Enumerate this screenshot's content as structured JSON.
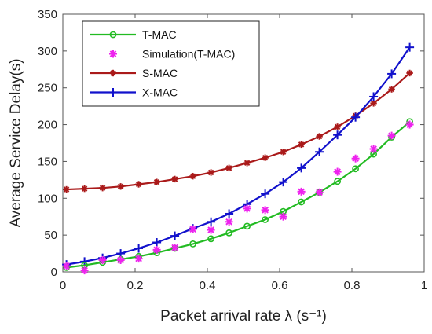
{
  "chart_data": {
    "type": "line",
    "xlabel": "Packet arrival rate λ (s⁻¹)",
    "ylabel": "Average Service Delay(s)",
    "xlim": [
      0,
      1
    ],
    "ylim": [
      0,
      350
    ],
    "xticks": [
      "0",
      "0.2",
      "0.4",
      "0.6",
      "0.8",
      "1"
    ],
    "yticks": [
      "0",
      "50",
      "100",
      "150",
      "200",
      "250",
      "300",
      "350"
    ],
    "grid": false,
    "legend_position": "top-left",
    "x": [
      0.01,
      0.06,
      0.11,
      0.16,
      0.21,
      0.26,
      0.31,
      0.36,
      0.41,
      0.46,
      0.51,
      0.56,
      0.61,
      0.66,
      0.71,
      0.76,
      0.81,
      0.86,
      0.91,
      0.96
    ],
    "series": [
      {
        "name": "T-MAC",
        "style": "line-circle",
        "color": "#22bb22",
        "values": [
          6,
          9,
          13,
          17,
          21,
          26,
          32,
          38,
          45,
          53,
          62,
          71,
          82,
          95,
          108,
          123,
          140,
          160,
          183,
          204
        ]
      },
      {
        "name": "Simulation(T-MAC)",
        "style": "marker-asterisk",
        "color": "#ee22ee",
        "values": [
          8,
          2,
          16,
          16,
          18,
          30,
          33,
          58,
          57,
          68,
          86,
          84,
          75,
          109,
          108,
          136,
          154,
          167,
          185,
          200
        ]
      },
      {
        "name": "S-MAC",
        "style": "line-asterisk",
        "color": "#aa1a1a",
        "values": [
          112,
          113,
          114,
          116,
          119,
          122,
          126,
          130,
          135,
          141,
          148,
          155,
          163,
          173,
          184,
          197,
          212,
          229,
          248,
          270
        ]
      },
      {
        "name": "X-MAC",
        "style": "line-plus",
        "color": "#1111cc",
        "values": [
          10,
          14,
          19,
          25,
          32,
          40,
          49,
          59,
          68,
          79,
          92,
          106,
          122,
          141,
          163,
          186,
          210,
          238,
          269,
          305
        ]
      }
    ]
  }
}
